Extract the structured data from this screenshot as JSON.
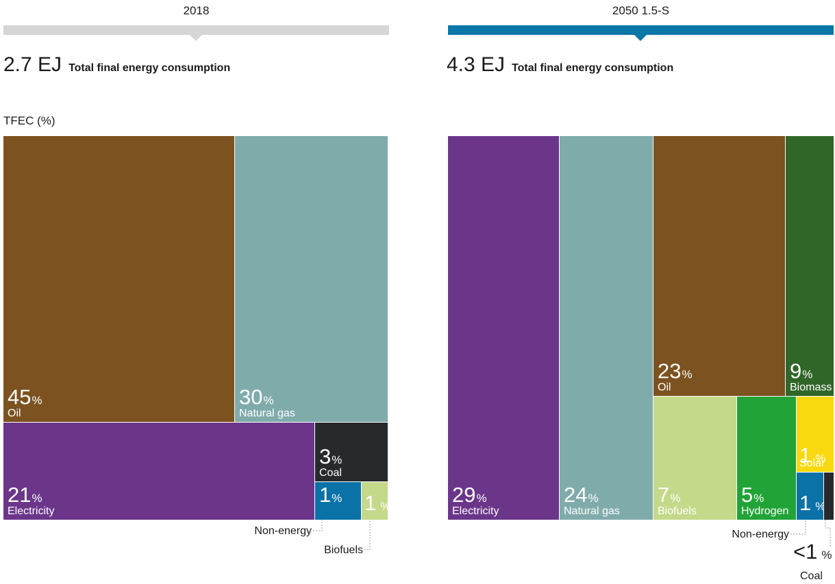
{
  "panels": [
    {
      "year_label": "2018",
      "total_value": "2.7 EJ",
      "total_label": "Total final energy consumption",
      "axis_note": "TFEC (%)",
      "header_color": "#d6d6d6"
    },
    {
      "year_label": "2050 1.5-S",
      "total_value": "4.3 EJ",
      "total_label": "Total final energy consumption",
      "axis_note": "",
      "header_color": "#0a77a8"
    }
  ],
  "chart_data": [
    {
      "type": "treemap",
      "title": "2018",
      "unit": "%",
      "items": [
        {
          "name": "Oil",
          "value_label": "45",
          "value": 45,
          "color": "#7b5220"
        },
        {
          "name": "Natural gas",
          "value_label": "30",
          "value": 30,
          "color": "#80abab"
        },
        {
          "name": "Electricity",
          "value_label": "21",
          "value": 21,
          "color": "#6b368a"
        },
        {
          "name": "Coal",
          "value_label": "3",
          "value": 3,
          "color": "#262a2d"
        },
        {
          "name": "Non-energy",
          "value_label": "1",
          "value": 1,
          "color": "#0a72a7"
        },
        {
          "name": "Biofuels",
          "value_label": "1",
          "value": 1,
          "color": "#c4d98a"
        }
      ]
    },
    {
      "type": "treemap",
      "title": "2050 1.5-S",
      "unit": "%",
      "items": [
        {
          "name": "Electricity",
          "value_label": "29",
          "value": 29,
          "color": "#6b368a"
        },
        {
          "name": "Natural gas",
          "value_label": "24",
          "value": 24,
          "color": "#80abab"
        },
        {
          "name": "Oil",
          "value_label": "23",
          "value": 23,
          "color": "#7b5220"
        },
        {
          "name": "Biomass",
          "value_label": "9",
          "value": 9,
          "color": "#316629"
        },
        {
          "name": "Biofuels",
          "value_label": "7",
          "value": 7,
          "color": "#c4d98a"
        },
        {
          "name": "Hydrogen",
          "value_label": "5",
          "value": 5,
          "color": "#22a337"
        },
        {
          "name": "Solar",
          "value_label": "1",
          "value": 1,
          "color": "#f8d90f"
        },
        {
          "name": "Non-energy",
          "value_label": "1",
          "value": 1,
          "color": "#0a72a7"
        },
        {
          "name": "Coal",
          "value_label": "<1",
          "value": 0.5,
          "color": "#262a2d"
        }
      ]
    }
  ]
}
